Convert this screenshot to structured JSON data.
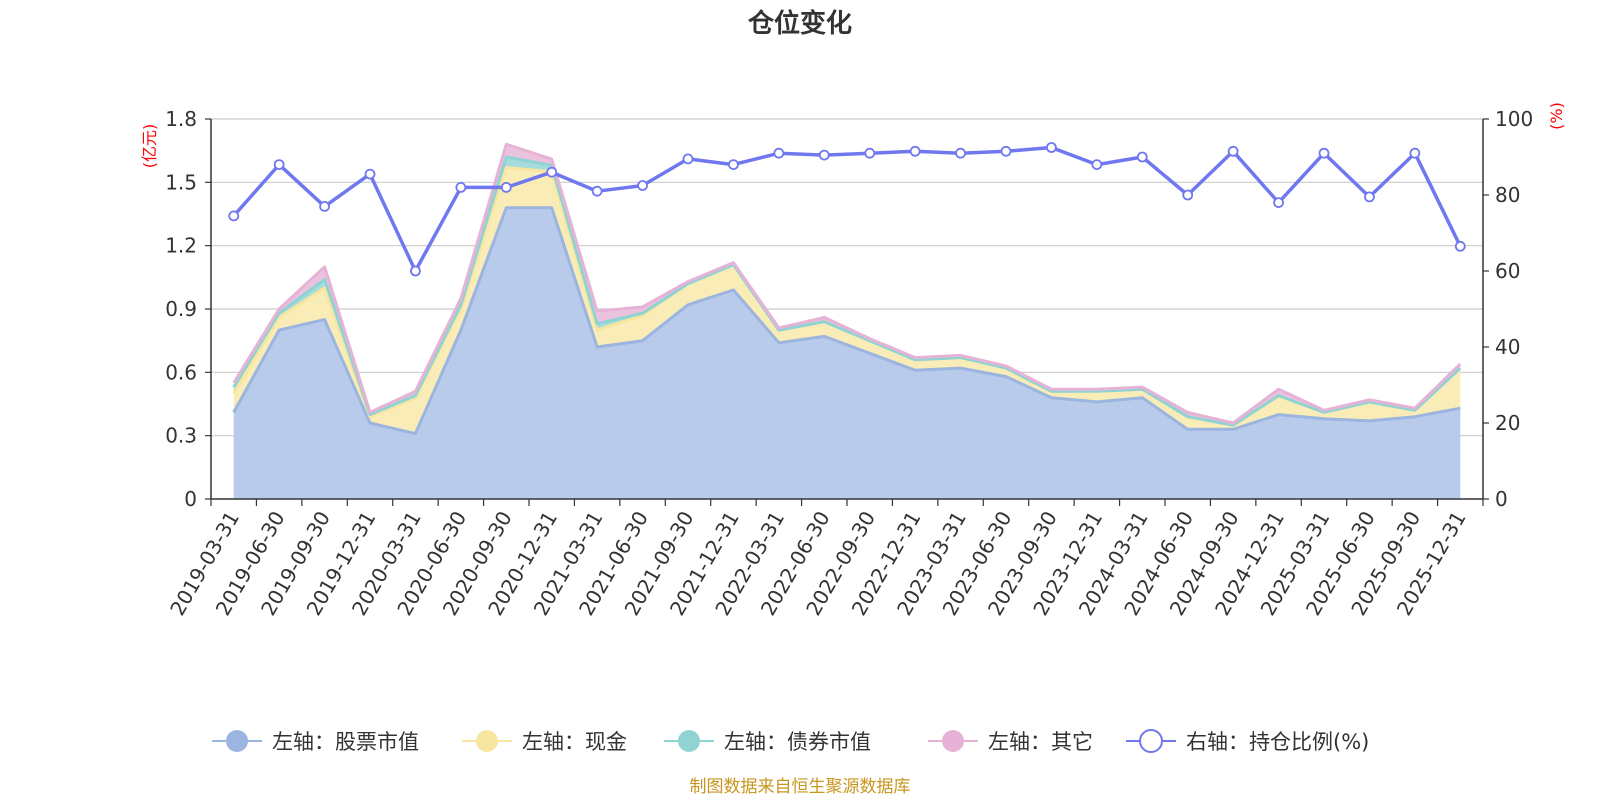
{
  "chart_data": {
    "type": "area",
    "title": "仓位变化",
    "source_note": "制图数据来自恒生聚源数据库",
    "left_axis": {
      "unit": "(亿元)",
      "min": 0,
      "max": 1.8,
      "ticks": [
        "0",
        "0.3",
        "0.6",
        "0.9",
        "1.2",
        "1.5",
        "1.8"
      ]
    },
    "right_axis": {
      "unit": "(%)",
      "min": 0,
      "max": 100,
      "ticks": [
        "0",
        "20",
        "40",
        "60",
        "80",
        "100"
      ]
    },
    "grid": true,
    "legend_position": "bottom",
    "categories": [
      "2019-03-31",
      "2019-06-30",
      "2019-09-30",
      "2019-12-31",
      "2020-03-31",
      "2020-06-30",
      "2020-09-30",
      "2020-12-31",
      "2021-03-31",
      "2021-06-30",
      "2021-09-30",
      "2021-12-31",
      "2022-03-31",
      "2022-06-30",
      "2022-09-30",
      "2022-12-31",
      "2023-03-31",
      "2023-06-30",
      "2023-09-30",
      "2023-12-31",
      "2024-03-31",
      "2024-06-30",
      "2024-09-30",
      "2024-12-31",
      "2025-03-31",
      "2025-06-30",
      "2025-09-30",
      "2025-12-31"
    ],
    "series": [
      {
        "name": "左轴：股票市值",
        "axis": "left",
        "kind": "stacked-area",
        "color": "#9bb5e0",
        "fill": "#b8cbea",
        "values": [
          0.41,
          0.8,
          0.85,
          0.36,
          0.31,
          0.8,
          1.38,
          1.38,
          0.72,
          0.75,
          0.92,
          0.99,
          0.74,
          0.77,
          0.69,
          0.61,
          0.62,
          0.58,
          0.48,
          0.46,
          0.48,
          0.33,
          0.33,
          0.4,
          0.38,
          0.37,
          0.39,
          0.43
        ]
      },
      {
        "name": "左轴：现金",
        "axis": "left",
        "kind": "stacked-area",
        "color": "#f7e6a0",
        "fill": "#f9ecb6",
        "values": [
          0.09,
          0.06,
          0.15,
          0.03,
          0.17,
          0.1,
          0.19,
          0.17,
          0.08,
          0.12,
          0.1,
          0.12,
          0.06,
          0.07,
          0.06,
          0.05,
          0.05,
          0.04,
          0.03,
          0.05,
          0.04,
          0.06,
          0.02,
          0.09,
          0.03,
          0.09,
          0.03,
          0.19
        ]
      },
      {
        "name": "左轴：债券市值",
        "axis": "left",
        "kind": "stacked-area",
        "color": "#8fd3d3",
        "fill": "#a6dcdb",
        "values": [
          0.03,
          0.02,
          0.04,
          0.01,
          0.01,
          0.02,
          0.05,
          0.03,
          0.03,
          0.01,
          0.0,
          0.0,
          0.0,
          0.0,
          0.0,
          0.0,
          0.0,
          0.0,
          0.0,
          0.0,
          0.0,
          0.0,
          0.0,
          0.0,
          0.0,
          0.0,
          0.0,
          0.0
        ]
      },
      {
        "name": "左轴：其它",
        "axis": "left",
        "kind": "stacked-area",
        "color": "#e6b3d6",
        "fill": "#ebc2de",
        "values": [
          0.02,
          0.02,
          0.06,
          0.01,
          0.02,
          0.03,
          0.06,
          0.03,
          0.06,
          0.03,
          0.01,
          0.01,
          0.01,
          0.02,
          0.01,
          0.01,
          0.01,
          0.01,
          0.01,
          0.01,
          0.01,
          0.02,
          0.01,
          0.03,
          0.01,
          0.01,
          0.01,
          0.02
        ]
      },
      {
        "name": "右轴：持仓比例(%)",
        "axis": "right",
        "kind": "line",
        "color": "#7078f0",
        "values": [
          74.5,
          88,
          77,
          85.5,
          60,
          82,
          82,
          86,
          81,
          82.5,
          89.5,
          88,
          91,
          90.5,
          91,
          91.5,
          91,
          91.5,
          92.5,
          88,
          90,
          80,
          91.5,
          78,
          91,
          79.5,
          91,
          66.5
        ]
      }
    ]
  }
}
